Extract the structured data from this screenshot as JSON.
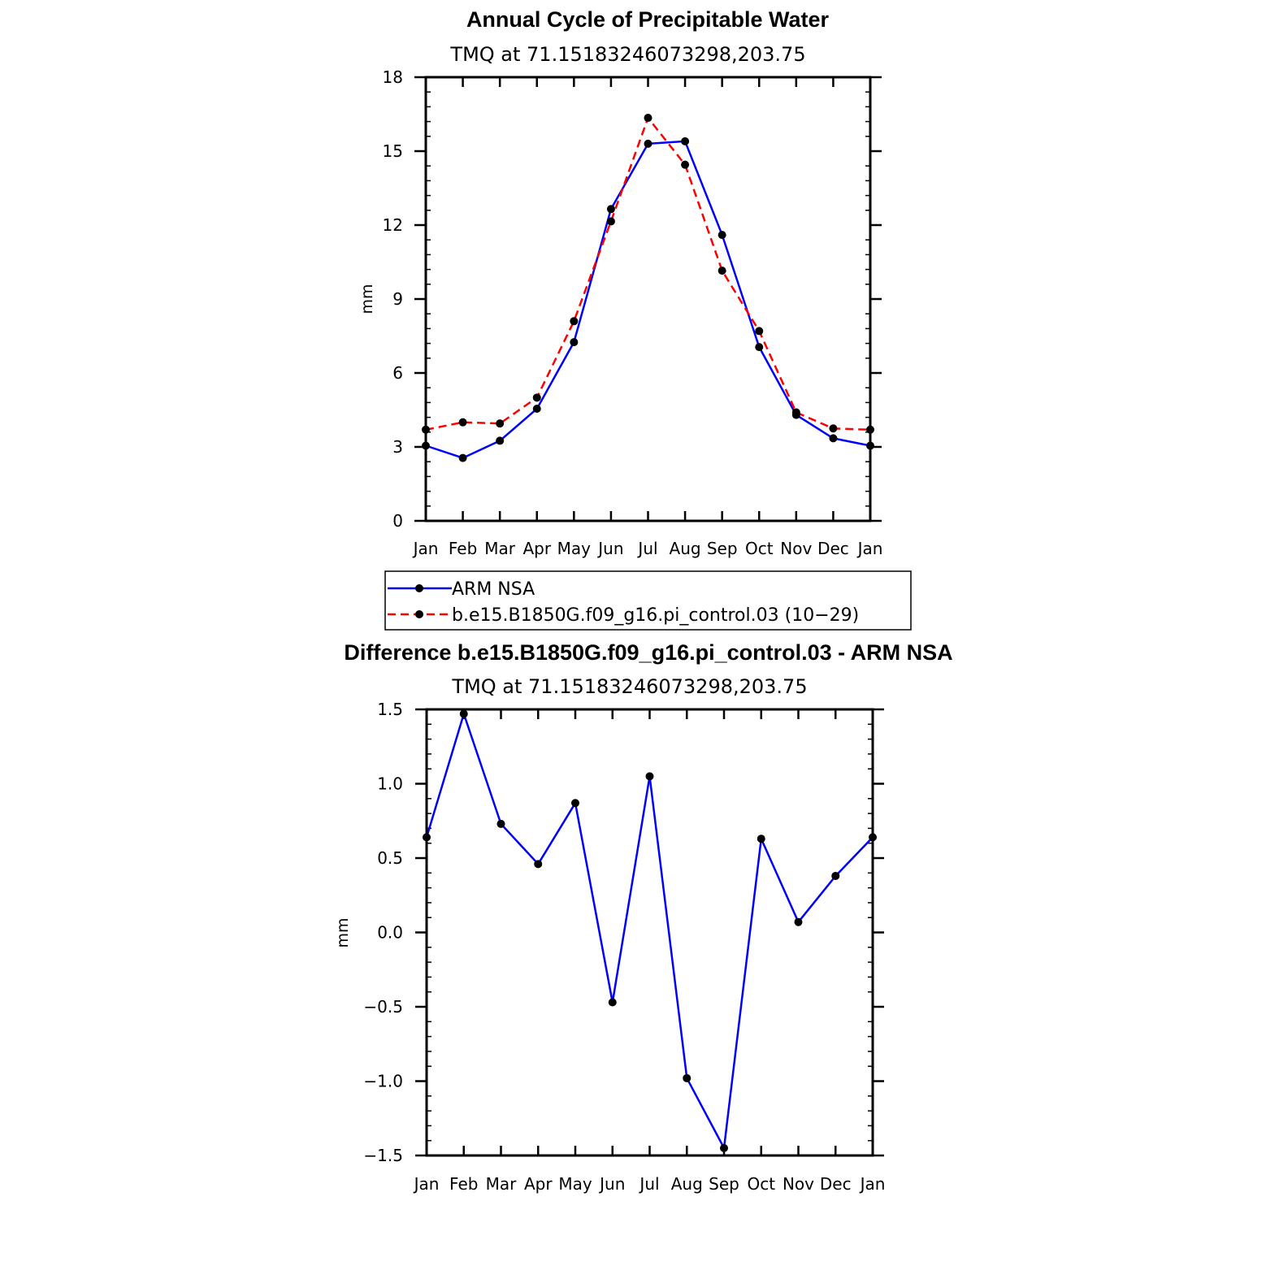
{
  "chart_data": [
    {
      "type": "line",
      "title": "Annual Cycle of Precipitable Water",
      "subtitle": "TMQ at 71.15183246073298,203.75",
      "ylabel": "mm",
      "xlabel": "",
      "categories": [
        "Jan",
        "Feb",
        "Mar",
        "Apr",
        "May",
        "Jun",
        "Jul",
        "Aug",
        "Sep",
        "Oct",
        "Nov",
        "Dec",
        "Jan"
      ],
      "ylim": [
        0,
        18
      ],
      "yticks": [
        0,
        3,
        6,
        9,
        12,
        15,
        18
      ],
      "ytick_labels": [
        "0",
        "3",
        "6",
        "9",
        "12",
        "15",
        "18"
      ],
      "grid": false,
      "legend_position": "below",
      "series": [
        {
          "name": "ARM NSA",
          "color": "#0000ff",
          "dash": "solid",
          "values": [
            3.05,
            2.55,
            3.25,
            4.55,
            7.25,
            12.65,
            15.3,
            15.4,
            11.6,
            7.05,
            4.3,
            3.35,
            3.05
          ]
        },
        {
          "name": "b.e15.B1850G.f09_g16.pi_control.03 (10−29)",
          "color": "#ff0000",
          "dash": "dashed",
          "values": [
            3.7,
            4.0,
            3.95,
            5.0,
            8.1,
            12.15,
            16.35,
            14.45,
            10.15,
            7.7,
            4.4,
            3.75,
            3.7
          ]
        }
      ]
    },
    {
      "type": "line",
      "title": "Difference b.e15.B1850G.f09_g16.pi_control.03 - ARM NSA",
      "subtitle": "TMQ at 71.15183246073298,203.75",
      "ylabel": "mm",
      "xlabel": "",
      "categories": [
        "Jan",
        "Feb",
        "Mar",
        "Apr",
        "May",
        "Jun",
        "Jul",
        "Aug",
        "Sep",
        "Oct",
        "Nov",
        "Dec",
        "Jan"
      ],
      "ylim": [
        -1.5,
        1.5
      ],
      "yticks": [
        -1.5,
        -1.0,
        -0.5,
        0.0,
        0.5,
        1.0,
        1.5
      ],
      "ytick_labels": [
        "−1.5",
        "−1.0",
        "−0.5",
        "0.0",
        "0.5",
        "1.0",
        "1.5"
      ],
      "grid": false,
      "series": [
        {
          "color": "#0000ff",
          "dash": "solid",
          "values": [
            0.64,
            1.47,
            0.73,
            0.46,
            0.87,
            -0.47,
            1.05,
            -0.98,
            -1.45,
            0.63,
            0.07,
            0.38,
            0.64
          ]
        }
      ]
    }
  ]
}
